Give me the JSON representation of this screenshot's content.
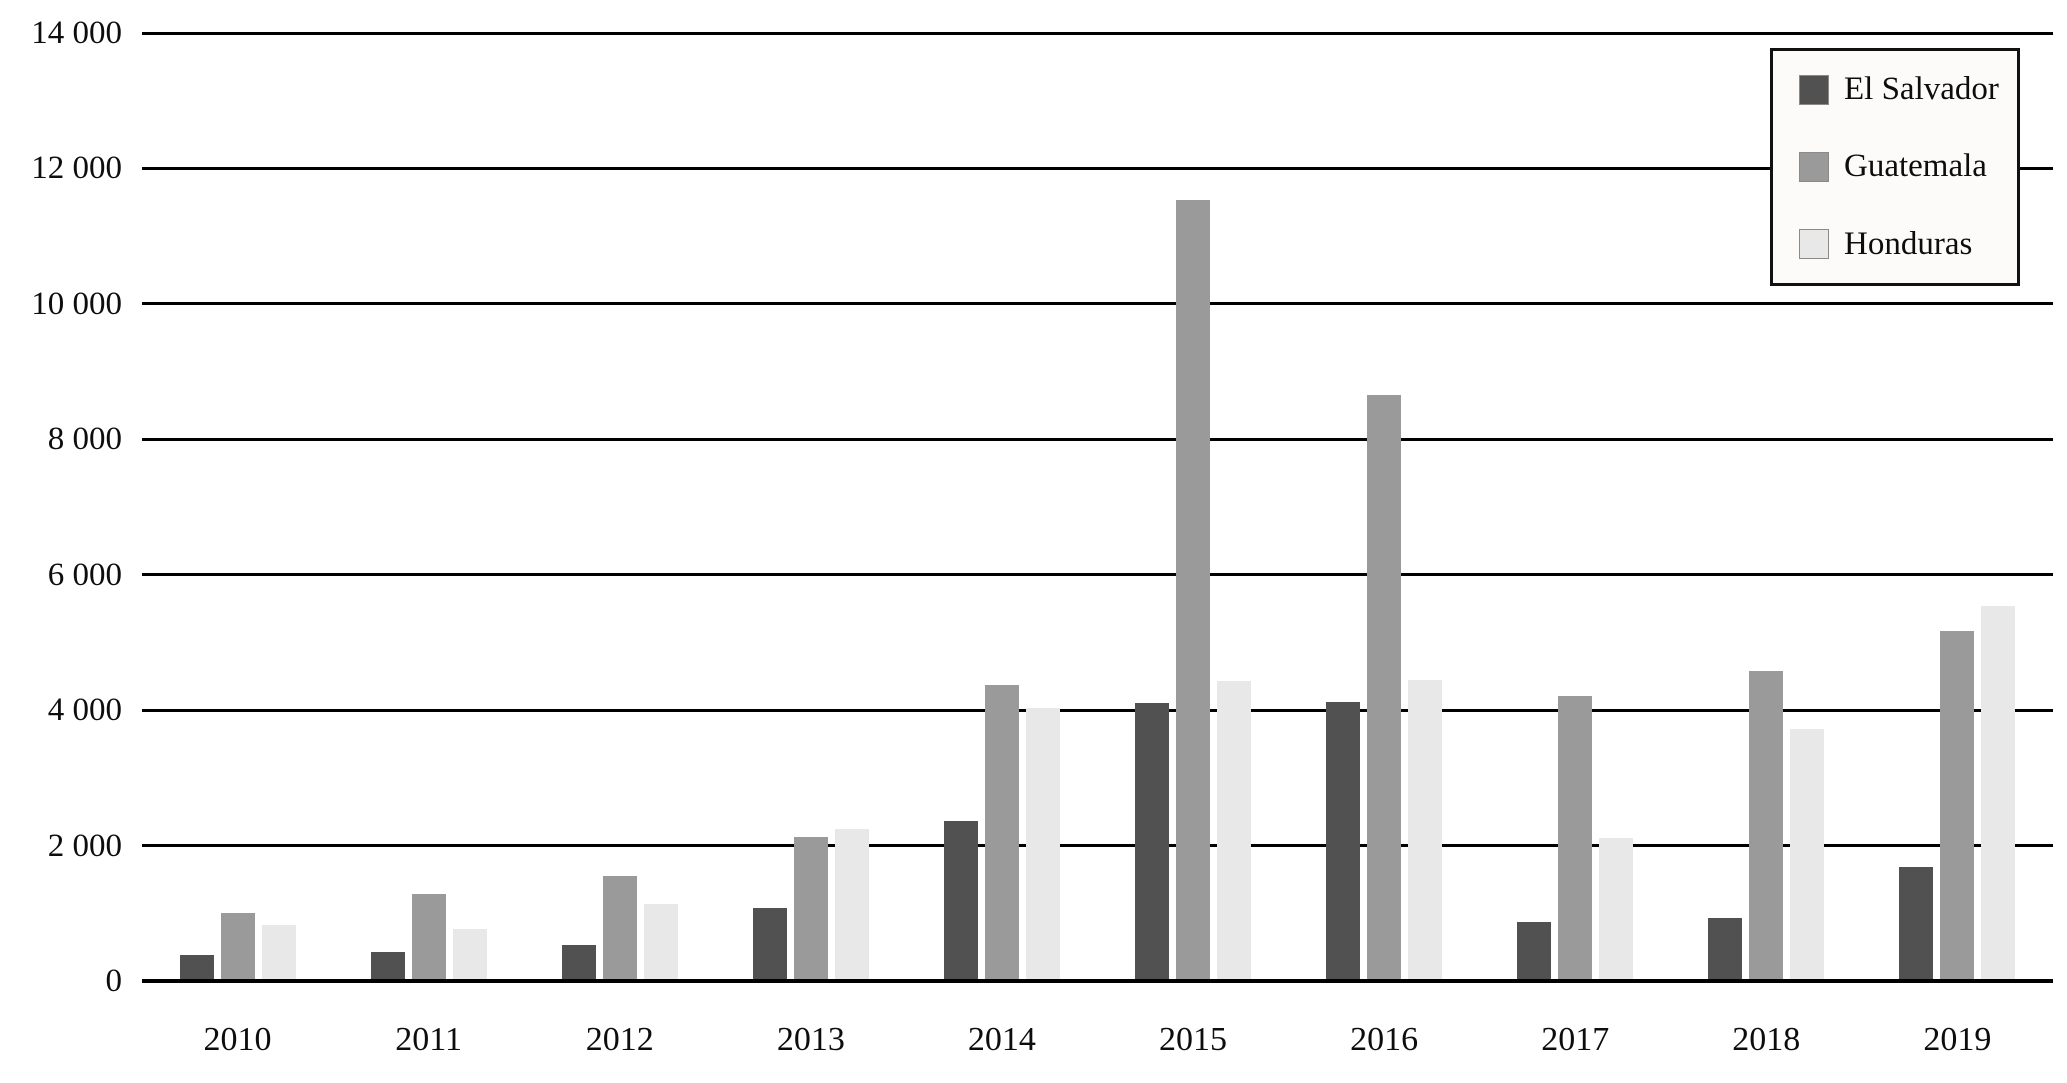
{
  "chart_data": {
    "type": "bar",
    "title": "",
    "xlabel": "",
    "ylabel": "",
    "categories": [
      "2010",
      "2011",
      "2012",
      "2013",
      "2014",
      "2015",
      "2016",
      "2017",
      "2018",
      "2019"
    ],
    "series": [
      {
        "name": "El Salvador",
        "color": "#515151",
        "values": [
          380,
          430,
          530,
          1080,
          2360,
          4110,
          4120,
          870,
          930,
          1680
        ]
      },
      {
        "name": "Guatemala",
        "color": "#9a9a9a",
        "values": [
          1000,
          1290,
          1550,
          2130,
          4370,
          11540,
          8660,
          4210,
          4580,
          5170
        ]
      },
      {
        "name": "Honduras",
        "color": "#e9e8e8",
        "values": [
          820,
          770,
          1140,
          2250,
          4030,
          4430,
          4450,
          2110,
          3720,
          5540
        ]
      }
    ],
    "ylim": [
      0,
      14000
    ],
    "yticks": [
      {
        "value": 14000,
        "label": "14 000"
      },
      {
        "value": 12000,
        "label": "12 000"
      },
      {
        "value": 10000,
        "label": "10 000"
      },
      {
        "value": 8000,
        "label": "8 000"
      },
      {
        "value": 6000,
        "label": "6 000"
      },
      {
        "value": 4000,
        "label": "4 000"
      },
      {
        "value": 2000,
        "label": "2 000"
      },
      {
        "value": 0,
        "label": "0"
      }
    ],
    "grid": true,
    "legend_position": "top-right",
    "legend_entries": [
      "El Salvador",
      "Guatemala",
      "Honduras"
    ]
  },
  "colors": {
    "gridline": "#000000",
    "text": "#0d0d0d",
    "background": "#ffffff",
    "legend_background": "#fcfbf9",
    "legend_border": "#111111"
  }
}
